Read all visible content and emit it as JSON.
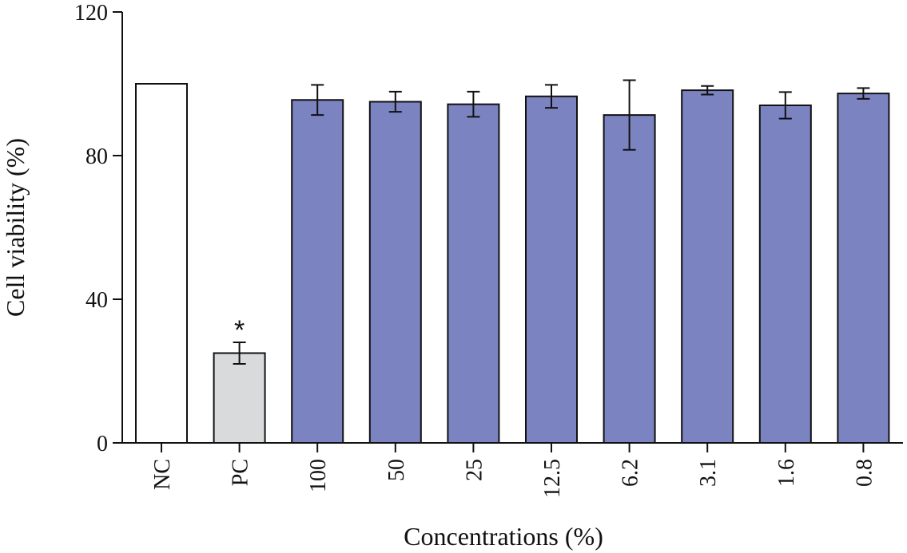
{
  "chart_data": {
    "type": "bar",
    "title": "",
    "xlabel": "Concentrations (%)",
    "ylabel": "Cell viability (%)",
    "ylim": [
      0,
      120
    ],
    "yticks": [
      0,
      40,
      80,
      120
    ],
    "categories": [
      "NC",
      "PC",
      "100",
      "50",
      "25",
      "12.5",
      "6.2",
      "3.1",
      "1.6",
      "0.8"
    ],
    "values": [
      100,
      25,
      95.5,
      95,
      94.3,
      96.5,
      91.3,
      98.2,
      94,
      97.3
    ],
    "errors": [
      0,
      3,
      4.2,
      2.8,
      3.5,
      3.2,
      9.7,
      1.2,
      3.7,
      1.5
    ],
    "bar_colors": [
      "#ffffff",
      "#d9dadc",
      "#7c83c1",
      "#7c83c1",
      "#7c83c1",
      "#7c83c1",
      "#7c83c1",
      "#7c83c1",
      "#7c83c1",
      "#7c83c1"
    ],
    "annotations": [
      {
        "category": "PC",
        "text": "*"
      }
    ]
  }
}
